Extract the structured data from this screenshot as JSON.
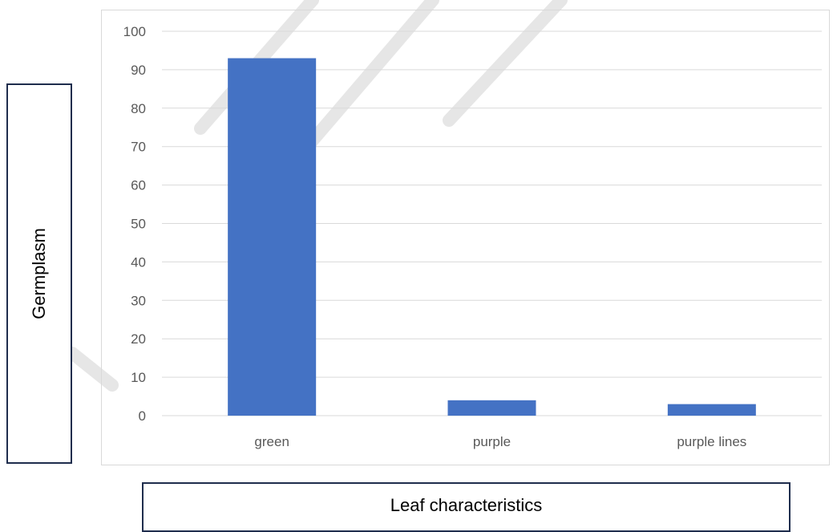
{
  "chart_data": {
    "type": "bar",
    "categories": [
      "green",
      "purple",
      "purple lines"
    ],
    "values": [
      93,
      4,
      3
    ],
    "title": "",
    "xlabel": "Leaf characteristics",
    "ylabel": "Germplasm",
    "ylim": [
      0,
      100
    ],
    "yticks": [
      "0",
      "10",
      "20",
      "30",
      "40",
      "50",
      "60",
      "70",
      "80",
      "90",
      "100"
    ],
    "grid": true,
    "legend": "none",
    "bar_color": "#4472c4",
    "grid_color": "#d9d9d9"
  }
}
